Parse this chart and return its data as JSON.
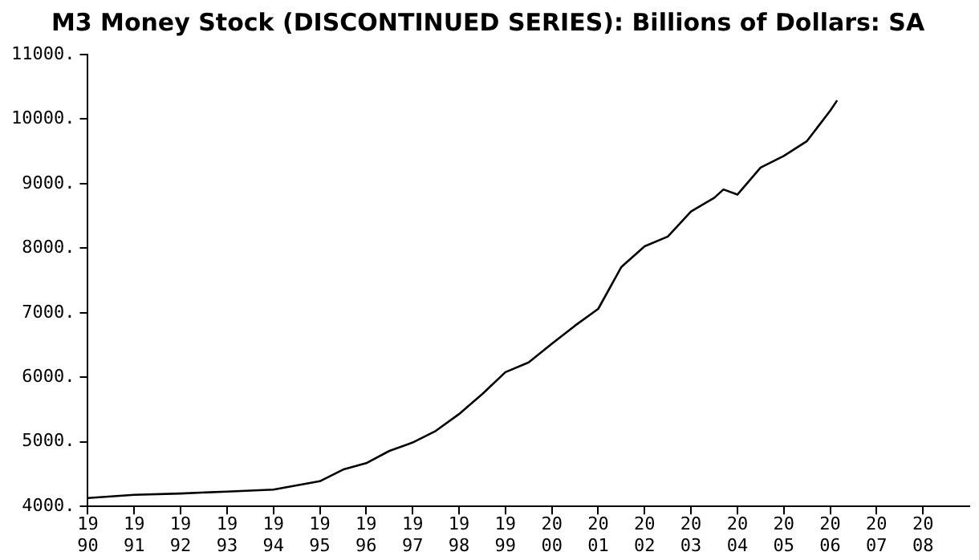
{
  "chart_data": {
    "type": "line",
    "title": "M3 Money Stock (DISCONTINUED SERIES): Billions of Dollars: SA",
    "x": [
      1990,
      1991,
      1992,
      1993,
      1994,
      1995,
      1995.5,
      1996,
      1996.5,
      1997,
      1997.5,
      1998,
      1998.5,
      1999,
      1999.5,
      2000,
      2000.5,
      2001,
      2001.5,
      2002,
      2002.5,
      2003,
      2003.5,
      2003.7,
      2004,
      2004.5,
      2005,
      2005.5,
      2006,
      2006.15
    ],
    "series": [
      {
        "color": "#000000",
        "values": [
          4130,
          4180,
          4200,
          4230,
          4260,
          4390,
          4570,
          4670,
          4860,
          4990,
          5170,
          5430,
          5740,
          6080,
          6230,
          6520,
          6800,
          7060,
          7710,
          8030,
          8180,
          8570,
          8780,
          8910,
          8830,
          9250,
          9430,
          9660,
          10130,
          10290
        ]
      }
    ],
    "xlim": [
      1990,
      2009
    ],
    "xticks": [
      1990,
      1991,
      1992,
      1993,
      1994,
      1995,
      1996,
      1997,
      1998,
      1999,
      2000,
      2001,
      2002,
      2003,
      2004,
      2005,
      2006,
      2007,
      2008
    ],
    "ylim": [
      4000,
      11000
    ],
    "yticks": [
      {
        "value": 4000,
        "label": "4000."
      },
      {
        "value": 5000,
        "label": "5000."
      },
      {
        "value": 6000,
        "label": "6000."
      },
      {
        "value": 7000,
        "label": "7000."
      },
      {
        "value": 8000,
        "label": "8000."
      },
      {
        "value": 9000,
        "label": "9000."
      },
      {
        "value": 10000,
        "label": "10000."
      },
      {
        "value": 11000,
        "label": "11000."
      }
    ],
    "grid": false,
    "legend": false,
    "marker": "none",
    "line_style": "solid"
  }
}
